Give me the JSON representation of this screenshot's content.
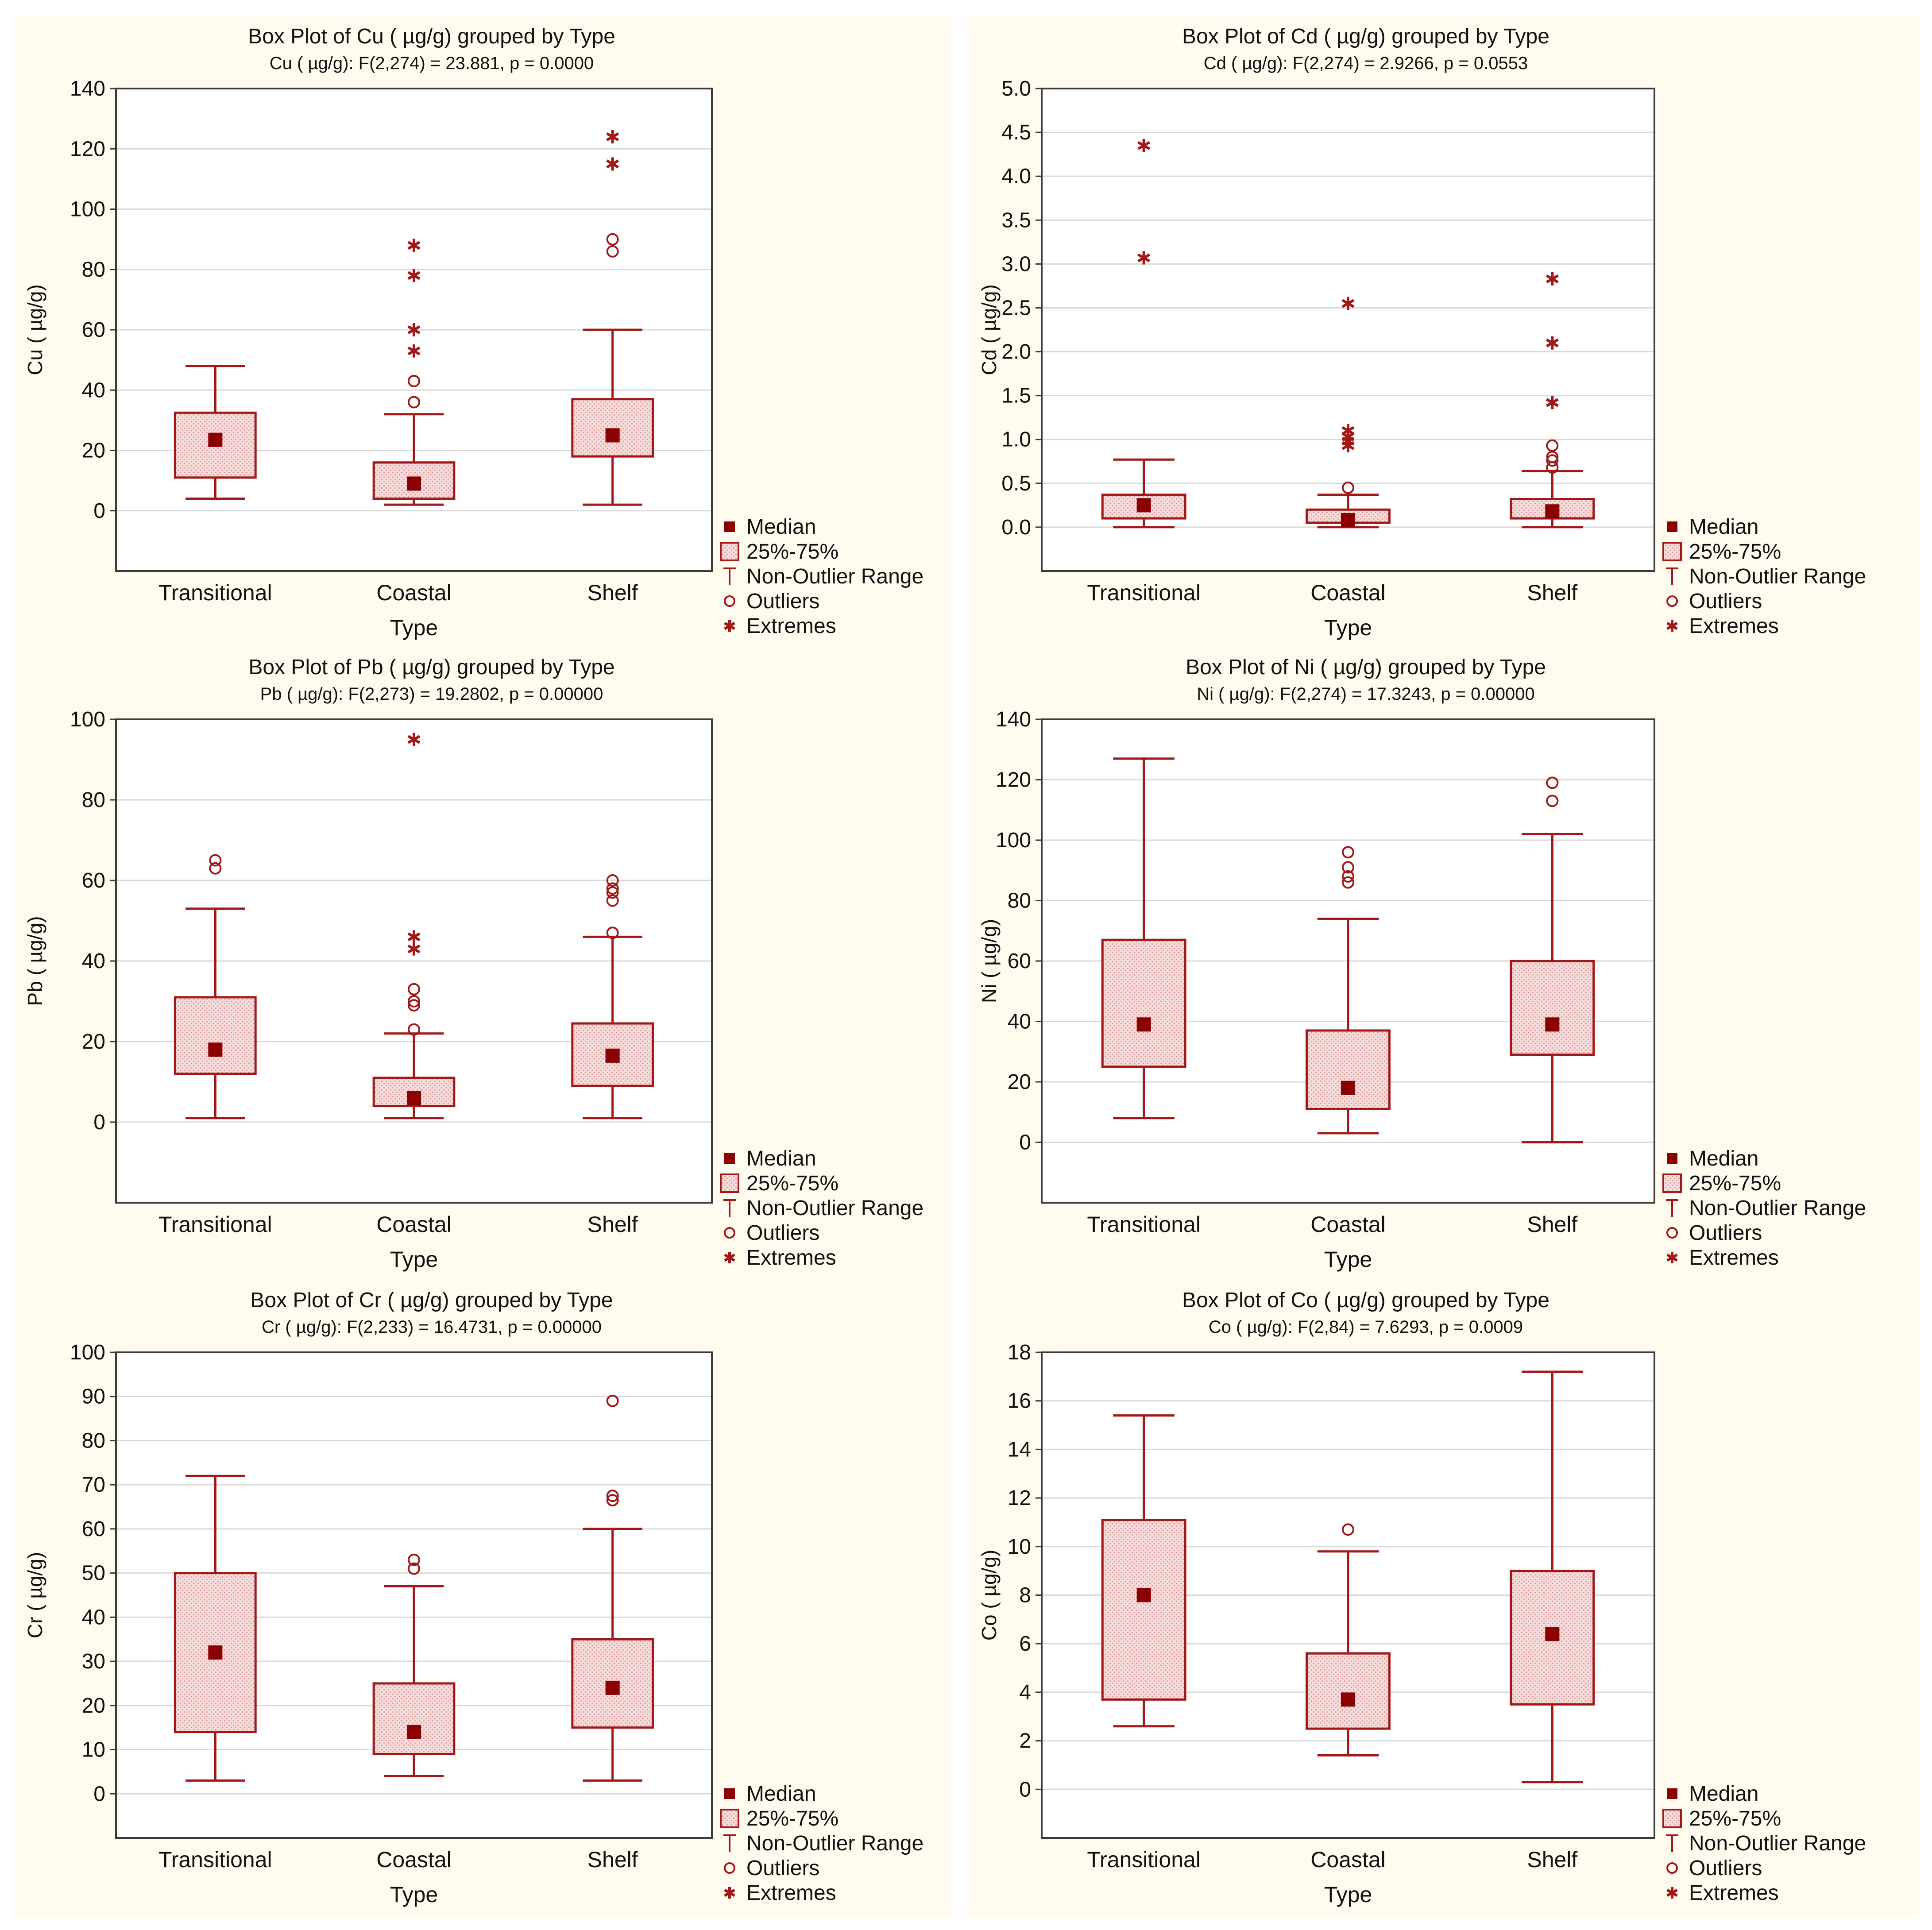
{
  "legend": {
    "median": "Median",
    "box": "25%-75%",
    "range": "Non-Outlier Range",
    "outliers": "Outliers",
    "extremes": "Extremes"
  },
  "colors": {
    "accent": "#a01818",
    "median_fill": "#8b0000",
    "box_fill": "#f7dada",
    "panel_bg": "#fffbef",
    "grid": "#d9d9d9",
    "frame": "#3a3a3a"
  },
  "chart_data": [
    {
      "type": "box",
      "title": "Box Plot of Cu ( µg/g) grouped by  Type",
      "subtitle": "Cu ( µg/g):    F(2,274) = 23.881, p = 0.0000",
      "xlabel": "Type",
      "ylabel": "Cu ( µg/g)",
      "categories": [
        "Transitional",
        "Coastal",
        "Shelf"
      ],
      "ylim": [
        -20,
        140
      ],
      "yticks": [
        0,
        20,
        40,
        60,
        80,
        100,
        120,
        140
      ],
      "ytick_labels": [
        "0",
        "20",
        "40",
        "60",
        "80",
        "100",
        "120",
        "140"
      ],
      "boxes": [
        {
          "whisker_low": 4,
          "q1": 11,
          "median": 23.5,
          "q3": 32.5,
          "whisker_high": 48,
          "outliers": [],
          "extremes": []
        },
        {
          "whisker_low": 2,
          "q1": 4,
          "median": 9,
          "q3": 16,
          "whisker_high": 32,
          "outliers": [
            36,
            43
          ],
          "extremes": [
            53,
            60,
            78,
            88
          ]
        },
        {
          "whisker_low": 2,
          "q1": 18,
          "median": 25,
          "q3": 37,
          "whisker_high": 60,
          "outliers": [
            86,
            90
          ],
          "extremes": [
            115,
            124
          ]
        }
      ]
    },
    {
      "type": "box",
      "title": "Box Plot of Cd  ( µg/g) grouped by  Type",
      "subtitle": "Cd  ( µg/g):    F(2,274) = 2.9266, p = 0.0553",
      "xlabel": "Type",
      "ylabel": "Cd  ( µg/g)",
      "categories": [
        "Transitional",
        "Coastal",
        "Shelf"
      ],
      "ylim": [
        -0.5,
        5.0
      ],
      "yticks": [
        0,
        0.5,
        1.0,
        1.5,
        2.0,
        2.5,
        3.0,
        3.5,
        4.0,
        4.5,
        5.0
      ],
      "ytick_labels": [
        "0.0",
        "0.5",
        "1.0",
        "1.5",
        "2.0",
        "2.5",
        "3.0",
        "3.5",
        "4.0",
        "4.5",
        "5.0"
      ],
      "boxes": [
        {
          "whisker_low": 0.0,
          "q1": 0.1,
          "median": 0.25,
          "q3": 0.37,
          "whisker_high": 0.77,
          "outliers": [],
          "extremes": [
            3.07,
            4.35
          ]
        },
        {
          "whisker_low": 0.0,
          "q1": 0.05,
          "median": 0.08,
          "q3": 0.2,
          "whisker_high": 0.37,
          "outliers": [
            0.45
          ],
          "extremes": [
            0.93,
            0.98,
            1.03,
            1.1,
            2.55
          ]
        },
        {
          "whisker_low": 0.0,
          "q1": 0.1,
          "median": 0.18,
          "q3": 0.32,
          "whisker_high": 0.64,
          "outliers": [
            0.68,
            0.76,
            0.8,
            0.93
          ],
          "extremes": [
            1.42,
            2.1,
            2.83
          ]
        }
      ]
    },
    {
      "type": "box",
      "title": "Box Plot of Pb  ( µg/g) grouped by  Type",
      "subtitle": "Pb  ( µg/g):    F(2,273) = 19.2802, p = 0.00000",
      "xlabel": "Type",
      "ylabel": "Pb  ( µg/g)",
      "categories": [
        "Transitional",
        "Coastal",
        "Shelf"
      ],
      "ylim": [
        -20,
        100
      ],
      "yticks": [
        0,
        20,
        40,
        60,
        80,
        100
      ],
      "ytick_labels": [
        "0",
        "20",
        "40",
        "60",
        "80",
        "100"
      ],
      "boxes": [
        {
          "whisker_low": 1,
          "q1": 12,
          "median": 18,
          "q3": 31,
          "whisker_high": 53,
          "outliers": [
            63,
            65
          ],
          "extremes": []
        },
        {
          "whisker_low": 1,
          "q1": 4,
          "median": 6,
          "q3": 11,
          "whisker_high": 22,
          "outliers": [
            23,
            29,
            30,
            33
          ],
          "extremes": [
            43,
            46,
            95
          ]
        },
        {
          "whisker_low": 1,
          "q1": 9,
          "median": 16.5,
          "q3": 24.5,
          "whisker_high": 46,
          "outliers": [
            47,
            55,
            57,
            58,
            60
          ],
          "extremes": []
        }
      ]
    },
    {
      "type": "box",
      "title": "Box Plot of Ni  ( µg/g) grouped by  Type",
      "subtitle": "Ni  ( µg/g):    F(2,274) = 17.3243, p = 0.00000",
      "xlabel": "Type",
      "ylabel": "Ni  ( µg/g)",
      "categories": [
        "Transitional",
        "Coastal",
        "Shelf"
      ],
      "ylim": [
        -20,
        140
      ],
      "yticks": [
        0,
        20,
        40,
        60,
        80,
        100,
        120,
        140
      ],
      "ytick_labels": [
        "0",
        "20",
        "40",
        "60",
        "80",
        "100",
        "120",
        "140"
      ],
      "boxes": [
        {
          "whisker_low": 8,
          "q1": 25,
          "median": 39,
          "q3": 67,
          "whisker_high": 127,
          "outliers": [],
          "extremes": []
        },
        {
          "whisker_low": 3,
          "q1": 11,
          "median": 18,
          "q3": 37,
          "whisker_high": 74,
          "outliers": [
            86,
            88,
            91,
            96
          ],
          "extremes": []
        },
        {
          "whisker_low": 0,
          "q1": 29,
          "median": 39,
          "q3": 60,
          "whisker_high": 102,
          "outliers": [
            113,
            119
          ],
          "extremes": []
        }
      ]
    },
    {
      "type": "box",
      "title": "Box Plot of Cr  ( µg/g) grouped by  Type",
      "subtitle": "Cr  ( µg/g):    F(2,233) = 16.4731, p = 0.00000",
      "xlabel": "Type",
      "ylabel": "Cr  ( µg/g)",
      "categories": [
        "Transitional",
        "Coastal",
        "Shelf"
      ],
      "ylim": [
        -10,
        100
      ],
      "yticks": [
        0,
        10,
        20,
        30,
        40,
        50,
        60,
        70,
        80,
        90,
        100
      ],
      "ytick_labels": [
        "0",
        "10",
        "20",
        "30",
        "40",
        "50",
        "60",
        "70",
        "80",
        "90",
        "100"
      ],
      "boxes": [
        {
          "whisker_low": 3,
          "q1": 14,
          "median": 32,
          "q3": 50,
          "whisker_high": 72,
          "outliers": [],
          "extremes": []
        },
        {
          "whisker_low": 4,
          "q1": 9,
          "median": 14,
          "q3": 25,
          "whisker_high": 47,
          "outliers": [
            51,
            53
          ],
          "extremes": []
        },
        {
          "whisker_low": 3,
          "q1": 15,
          "median": 24,
          "q3": 35,
          "whisker_high": 60,
          "outliers": [
            66.5,
            67.5,
            89
          ],
          "extremes": []
        }
      ]
    },
    {
      "type": "box",
      "title": "Box Plot of Co  ( µg/g) grouped by  Type",
      "subtitle": "Co  ( µg/g):    F(2,84) = 7.6293, p = 0.0009",
      "xlabel": "Type",
      "ylabel": "Co  ( µg/g)",
      "categories": [
        "Transitional",
        "Coastal",
        "Shelf"
      ],
      "ylim": [
        -2,
        18
      ],
      "yticks": [
        0,
        2,
        4,
        6,
        8,
        10,
        12,
        14,
        16,
        18
      ],
      "ytick_labels": [
        "0",
        "2",
        "4",
        "6",
        "8",
        "10",
        "12",
        "14",
        "16",
        "18"
      ],
      "boxes": [
        {
          "whisker_low": 2.6,
          "q1": 3.7,
          "median": 8,
          "q3": 11.1,
          "whisker_high": 15.4,
          "outliers": [],
          "extremes": []
        },
        {
          "whisker_low": 1.4,
          "q1": 2.5,
          "median": 3.7,
          "q3": 5.6,
          "whisker_high": 9.8,
          "outliers": [
            10.7
          ],
          "extremes": []
        },
        {
          "whisker_low": 0.3,
          "q1": 3.5,
          "median": 6.4,
          "q3": 9,
          "whisker_high": 17.2,
          "outliers": [],
          "extremes": []
        }
      ]
    }
  ]
}
